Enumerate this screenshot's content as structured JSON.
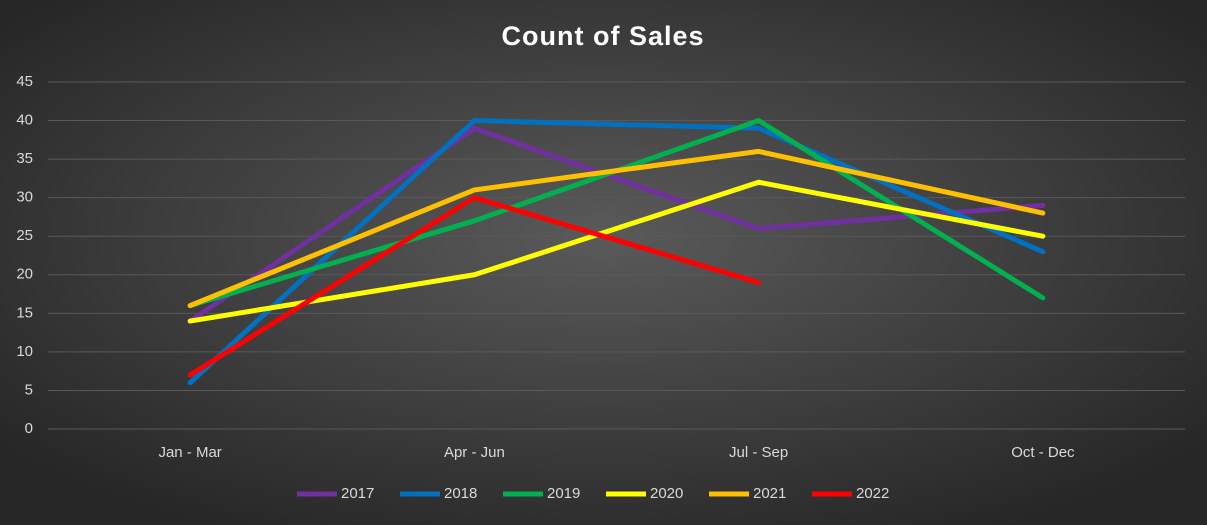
{
  "chart_data": {
    "type": "line",
    "title": "Count of Sales",
    "categories": [
      "Jan - Mar",
      "Apr - Jun",
      "Jul - Sep",
      "Oct - Dec"
    ],
    "series": [
      {
        "name": "2017",
        "color": "#7030a0",
        "values": [
          14,
          39,
          26,
          29
        ]
      },
      {
        "name": "2018",
        "color": "#0070c0",
        "values": [
          6,
          40,
          39,
          23
        ]
      },
      {
        "name": "2019",
        "color": "#00b050",
        "values": [
          16,
          27,
          40,
          17
        ]
      },
      {
        "name": "2020",
        "color": "#ffff00",
        "values": [
          14,
          20,
          32,
          25
        ]
      },
      {
        "name": "2021",
        "color": "#ffc000",
        "values": [
          16,
          31,
          36,
          28
        ]
      },
      {
        "name": "2022",
        "color": "#ff0000",
        "values": [
          7,
          30,
          19,
          null
        ]
      }
    ],
    "ylim": [
      0,
      45
    ],
    "yticks": [
      0,
      5,
      10,
      15,
      20,
      25,
      30,
      35,
      40,
      45
    ],
    "grid": true,
    "legend": "bottom"
  }
}
